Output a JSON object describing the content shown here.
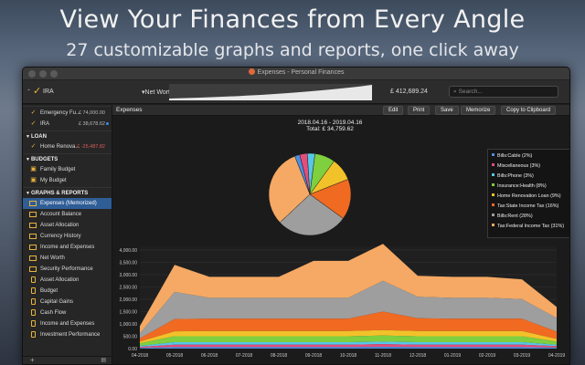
{
  "hero": {
    "title": "View Your Finances from Every Angle",
    "subtitle": "27 customizable graphs and reports, one click away"
  },
  "window": {
    "title": "Expenses - Personal Finances"
  },
  "toolbar": {
    "account": "IRA",
    "net_worth_label": "Net Worth:",
    "net_worth_value": "£ 412,689.24",
    "search_placeholder": "Search..."
  },
  "sidebar": {
    "accounts": [
      {
        "label": "Emergency Fu...",
        "amount": "£ 74,000.00"
      },
      {
        "label": "IRA",
        "amount": "£ 38,678.62"
      }
    ],
    "loan_header": "LOAN",
    "loans": [
      {
        "label": "Home Renova...",
        "amount": "£ -25,487.82"
      }
    ],
    "budgets_header": "BUDGETS",
    "budgets": [
      {
        "label": "Family Budget"
      },
      {
        "label": "My Budget"
      }
    ],
    "graphs_header": "GRAPHS & REPORTS",
    "graphs": [
      {
        "label": "Expenses (Memorized)",
        "icon": "chart-icon",
        "selected": true
      },
      {
        "label": "Account Balance",
        "icon": "chart-icon"
      },
      {
        "label": "Asset Allocation",
        "icon": "chart-icon"
      },
      {
        "label": "Currency History",
        "icon": "chart-icon"
      },
      {
        "label": "Income and Expenses",
        "icon": "chart-icon"
      },
      {
        "label": "Net Worth",
        "icon": "chart-icon"
      },
      {
        "label": "Security Performance",
        "icon": "chart-icon"
      },
      {
        "label": "Asset Allocation",
        "icon": "report-icon"
      },
      {
        "label": "Budget",
        "icon": "report-icon"
      },
      {
        "label": "Capital Gains",
        "icon": "report-icon"
      },
      {
        "label": "Cash Flow",
        "icon": "report-icon"
      },
      {
        "label": "Income and Expenses",
        "icon": "report-icon"
      },
      {
        "label": "Investment Performance",
        "icon": "report-icon"
      }
    ]
  },
  "content": {
    "title": "Expenses",
    "buttons": {
      "edit": "Edit",
      "print": "Print",
      "save": "Save",
      "memorize": "Memorize",
      "copy": "Copy to Clipboard"
    }
  },
  "chart_data": [
    {
      "type": "pie",
      "title": "2018.04.16 - 2019.04.16",
      "subtitle": "Total: £ 34,759.62",
      "slices": [
        {
          "label": "Bills:Cable (2%)",
          "value": 2,
          "color": "#4a8fe0"
        },
        {
          "label": "Miscellaneous (3%)",
          "value": 3,
          "color": "#e44e7c"
        },
        {
          "label": "Bills:Phone (3%)",
          "value": 3,
          "color": "#56c7e8"
        },
        {
          "label": "Insurance:Health (8%)",
          "value": 8,
          "color": "#7fcf3f"
        },
        {
          "label": "Home Renovation Loan (9%)",
          "value": 9,
          "color": "#f2c22a"
        },
        {
          "label": "Tax:State Income Tax (16%)",
          "value": 16,
          "color": "#f06a22"
        },
        {
          "label": "Bills:Rent (28%)",
          "value": 28,
          "color": "#9e9e9e"
        },
        {
          "label": "Tax:Federal Income Tax (31%)",
          "value": 31,
          "color": "#f5a964"
        }
      ]
    },
    {
      "type": "area",
      "stacked": true,
      "ylim": [
        0,
        4000
      ],
      "yticks": [
        "0.00",
        "500.00",
        "1,000.00",
        "1,500.00",
        "2,000.00",
        "2,500.00",
        "3,000.00",
        "3,500.00",
        "4,000.00"
      ],
      "categories": [
        "04-2018",
        "05-2018",
        "06-2018",
        "07-2018",
        "08-2018",
        "09-2018",
        "10-2018",
        "11-2018",
        "12-2018",
        "01-2019",
        "02-2019",
        "03-2019",
        "04-2019"
      ],
      "series": [
        {
          "color": "#4a8fe0",
          "values": [
            30,
            60,
            60,
            60,
            60,
            60,
            60,
            70,
            60,
            60,
            60,
            60,
            40
          ]
        },
        {
          "color": "#e44e7c",
          "values": [
            40,
            100,
            100,
            100,
            100,
            100,
            100,
            110,
            100,
            100,
            100,
            100,
            60
          ]
        },
        {
          "color": "#56c7e8",
          "values": [
            40,
            100,
            100,
            100,
            100,
            100,
            100,
            100,
            100,
            100,
            100,
            100,
            60
          ]
        },
        {
          "color": "#7fcf3f",
          "values": [
            100,
            240,
            240,
            240,
            240,
            240,
            240,
            250,
            240,
            240,
            240,
            240,
            120
          ]
        },
        {
          "color": "#f2c22a",
          "values": [
            80,
            200,
            210,
            210,
            210,
            210,
            210,
            220,
            210,
            210,
            210,
            210,
            110
          ]
        },
        {
          "color": "#f06a22",
          "values": [
            120,
            500,
            500,
            500,
            500,
            500,
            500,
            750,
            520,
            500,
            500,
            500,
            300
          ]
        },
        {
          "color": "#9e9e9e",
          "values": [
            200,
            1100,
            850,
            850,
            850,
            850,
            850,
            1250,
            870,
            850,
            850,
            800,
            550
          ]
        },
        {
          "color": "#f5a964",
          "values": [
            300,
            1100,
            850,
            850,
            850,
            1500,
            1500,
            1500,
            850,
            850,
            850,
            800,
            450
          ]
        }
      ]
    }
  ]
}
